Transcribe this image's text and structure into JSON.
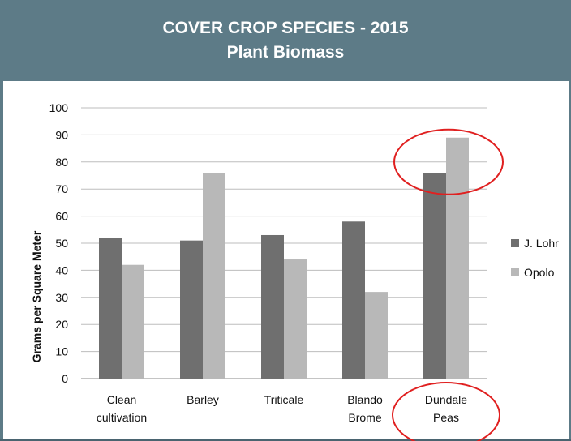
{
  "header": {
    "title": "COVER CROP SPECIES - 2015",
    "subtitle": "Plant Biomass"
  },
  "chart_data": {
    "type": "bar",
    "title": "COVER CROP SPECIES - 2015",
    "subtitle": "Plant Biomass",
    "xlabel": "",
    "ylabel": "Grams per Square Meter",
    "ylim": [
      0,
      100
    ],
    "yticks": [
      0,
      10,
      20,
      30,
      40,
      50,
      60,
      70,
      80,
      90,
      100
    ],
    "grid": true,
    "legend_position": "right",
    "categories": [
      [
        "Clean",
        "cultivation"
      ],
      [
        "Barley"
      ],
      [
        "Triticale"
      ],
      [
        "Blando",
        "Brome"
      ],
      [
        "Dundale",
        "Peas"
      ]
    ],
    "series": [
      {
        "name": "J. Lohr",
        "color": "#6f6f6f",
        "values": [
          52,
          51,
          53,
          58,
          76
        ]
      },
      {
        "name": "Opolo",
        "color": "#b8b8b8",
        "values": [
          42,
          76,
          44,
          32,
          89
        ]
      }
    ],
    "annotations": [
      {
        "type": "circle",
        "color": "#e02020",
        "target": "Dundale Peas bars"
      },
      {
        "type": "circle",
        "color": "#e02020",
        "target": "Dundale Peas label"
      }
    ]
  }
}
